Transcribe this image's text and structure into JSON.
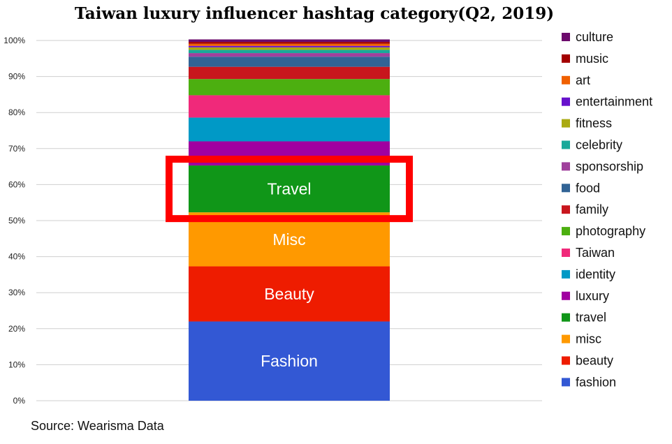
{
  "title": "Taiwan luxury influencer hashtag category(Q2, 2019)",
  "source": "Source: Wearisma Data",
  "chart_data": {
    "type": "bar",
    "stacked": true,
    "categories": [
      ""
    ],
    "ylim": [
      0,
      100
    ],
    "yticks": [
      "0%",
      "10%",
      "20%",
      "30%",
      "40%",
      "50%",
      "60%",
      "70%",
      "80%",
      "90%",
      "100%"
    ],
    "grid": true,
    "legend_position": "right",
    "highlight": "travel",
    "series": [
      {
        "name": "fashion",
        "label": "Fashion",
        "value": 22.0,
        "color": "#3358D4"
      },
      {
        "name": "beauty",
        "label": "Beauty",
        "value": 15.3,
        "color": "#EE1C00"
      },
      {
        "name": "misc",
        "label": "Misc",
        "value": 15.0,
        "color": "#FF9900"
      },
      {
        "name": "travel",
        "label": "Travel",
        "value": 13.0,
        "color": "#109618"
      },
      {
        "name": "luxury",
        "label": "",
        "value": 6.7,
        "color": "#A000A0"
      },
      {
        "name": "identity",
        "label": "",
        "value": 6.6,
        "color": "#0099C6"
      },
      {
        "name": "Taiwan",
        "label": "",
        "value": 6.2,
        "color": "#F0297A"
      },
      {
        "name": "photography",
        "label": "",
        "value": 4.5,
        "color": "#4CAF10"
      },
      {
        "name": "family",
        "label": "",
        "value": 3.4,
        "color": "#C8161D"
      },
      {
        "name": "food",
        "label": "",
        "value": 2.8,
        "color": "#316395"
      },
      {
        "name": "sponsorship",
        "label": "",
        "value": 1.0,
        "color": "#A0409C"
      },
      {
        "name": "celebrity",
        "label": "",
        "value": 0.9,
        "color": "#19A99A"
      },
      {
        "name": "fitness",
        "label": "",
        "value": 0.7,
        "color": "#AAAA11"
      },
      {
        "name": "entertainment",
        "label": "",
        "value": 0.4,
        "color": "#6611CC"
      },
      {
        "name": "art",
        "label": "",
        "value": 0.6,
        "color": "#F06000"
      },
      {
        "name": "music",
        "label": "",
        "value": 0.5,
        "color": "#A30000"
      },
      {
        "name": "culture",
        "label": "",
        "value": 0.7,
        "color": "#6C0A6C"
      }
    ]
  }
}
